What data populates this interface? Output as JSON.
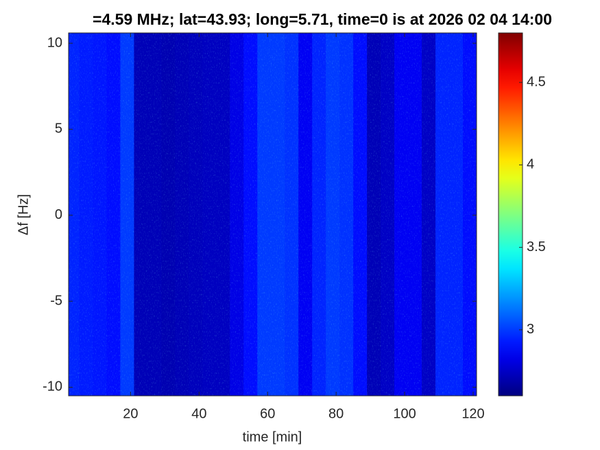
{
  "chart_data": {
    "type": "heatmap",
    "title": "=4.59 MHz;  lat=43.93; long=5.71, time=0 is at 2026 02 04 14:00",
    "x_label": "time [min]",
    "y_label": "Δf [Hz]",
    "x": [
      3,
      7,
      11,
      15,
      19,
      23,
      27,
      31,
      35,
      39,
      43,
      47,
      51,
      55,
      59,
      63,
      67,
      71,
      75,
      79,
      83,
      87,
      91,
      95,
      99,
      103,
      107,
      111,
      115,
      119
    ],
    "values": [
      2.95,
      2.93,
      2.92,
      2.9,
      3.0,
      2.72,
      2.72,
      2.71,
      2.72,
      2.73,
      2.74,
      2.74,
      2.82,
      2.9,
      3.0,
      3.0,
      2.98,
      2.85,
      2.95,
      3.0,
      2.98,
      2.9,
      2.72,
      2.75,
      2.85,
      2.85,
      2.75,
      2.95,
      2.95,
      2.9
    ],
    "column_width": 4,
    "xlim": [
      1.9,
      121
    ],
    "xticks": [
      20,
      40,
      60,
      80,
      100,
      120
    ],
    "ylim": [
      -10.5,
      10.6
    ],
    "yticks": [
      10,
      5,
      0,
      -5,
      -10
    ],
    "clim": [
      2.6,
      4.8
    ],
    "cticks": [
      3,
      3.5,
      4,
      4.5
    ],
    "colormap": "jet"
  }
}
